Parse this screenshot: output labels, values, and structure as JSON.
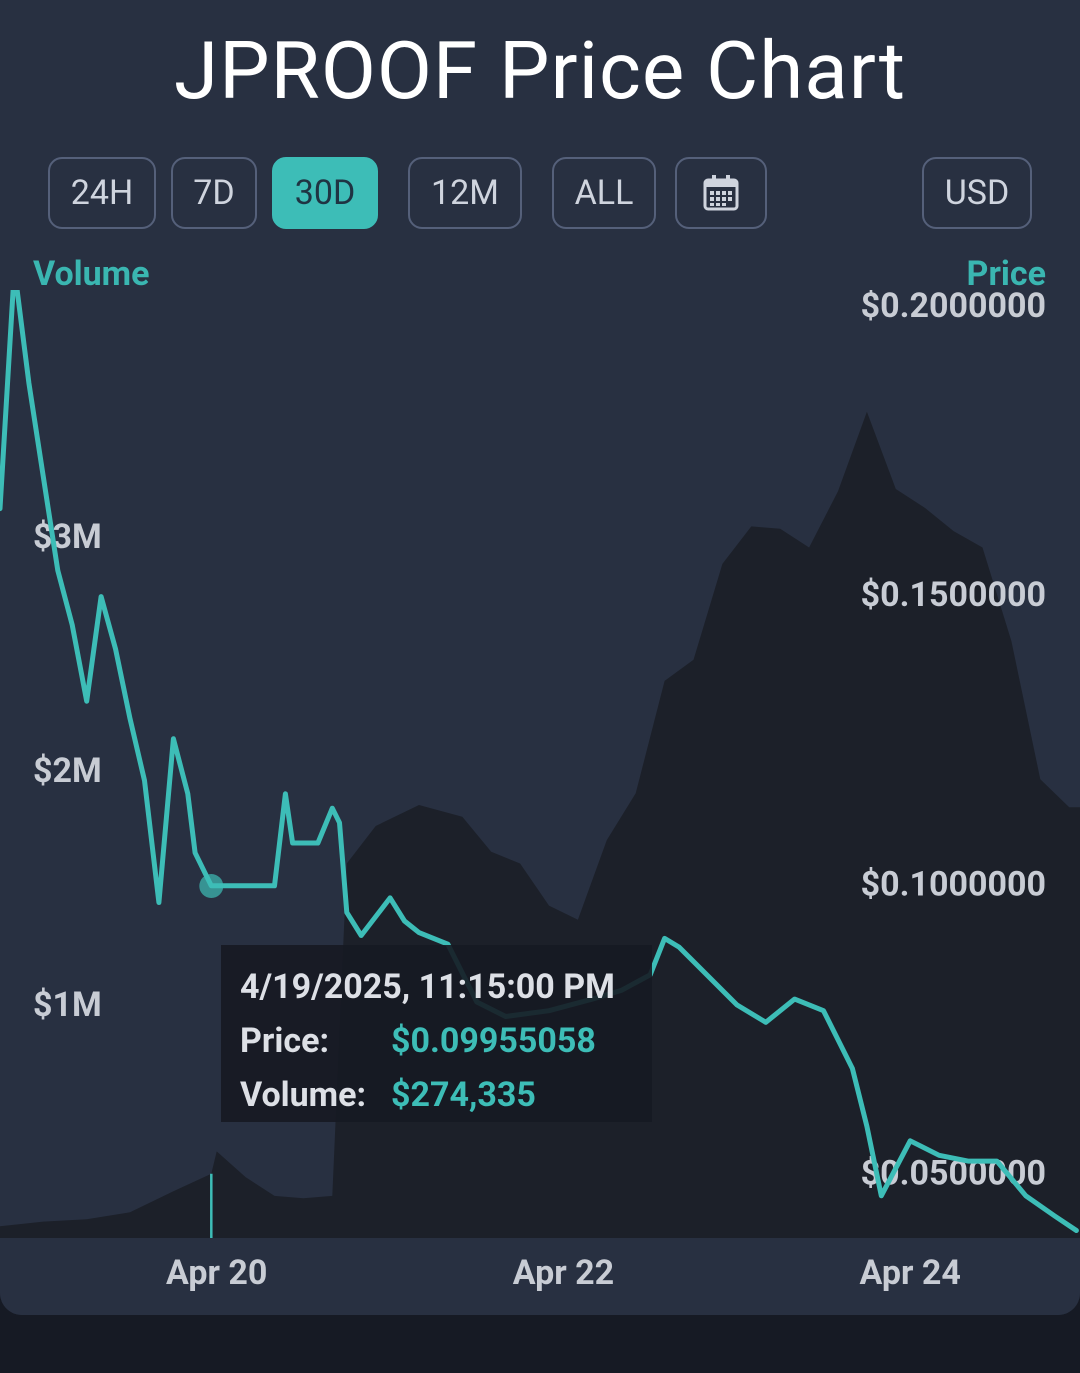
{
  "title": "JPROOF Price Chart",
  "range_buttons": [
    {
      "label": "24H",
      "active": false
    },
    {
      "label": "7D",
      "active": false
    },
    {
      "label": "30D",
      "active": true
    },
    {
      "label": "12M",
      "active": false
    },
    {
      "label": "ALL",
      "active": false
    }
  ],
  "calendar_icon": "calendar-icon",
  "currency_button": "USD",
  "colors": {
    "accent": "#3dbdb7",
    "card_bg": "#283041",
    "page_bg": "#161a24",
    "volume_fill": "#1c2029",
    "tick_text": "#c8ccd4"
  },
  "tooltip": {
    "date": "4/19/2025, 11:15:00 PM",
    "price_label": "Price:",
    "price_value": "$0.09955058",
    "volume_label": "Volume:",
    "volume_value": "$274,335"
  },
  "chart_data": {
    "type": "line",
    "title": "JPROOF Price Chart",
    "series": [
      {
        "name": "Price",
        "axis": "right",
        "style": "line",
        "points": [
          [
            "4/18/2025 18:00",
            0.1648
          ],
          [
            "4/18/2025 20:00",
            0.2063
          ],
          [
            "4/18/2025 22:00",
            0.1865
          ],
          [
            "4/19/2025 00:00",
            0.1703
          ],
          [
            "4/19/2025 02:00",
            0.1541
          ],
          [
            "4/19/2025 04:00",
            0.1447
          ],
          [
            "4/19/2025 06:00",
            0.1315
          ],
          [
            "4/19/2025 08:00",
            0.1496
          ],
          [
            "4/19/2025 10:00",
            0.1405
          ],
          [
            "4/19/2025 12:00",
            0.1285
          ],
          [
            "4/19/2025 14:00",
            0.1178
          ],
          [
            "4/19/2025 16:00",
            0.0967
          ],
          [
            "4/19/2025 18:00",
            0.125
          ],
          [
            "4/19/2025 20:00",
            0.1155
          ],
          [
            "4/19/2025 21:00",
            0.1053
          ],
          [
            "4/19/2025 23:15",
            0.0996
          ],
          [
            "4/20/2025 04:00",
            0.0996
          ],
          [
            "4/20/2025 08:00",
            0.0996
          ],
          [
            "4/20/2025 09:30",
            0.1155
          ],
          [
            "4/20/2025 10:30",
            0.107
          ],
          [
            "4/20/2025 14:00",
            0.107
          ],
          [
            "4/20/2025 16:00",
            0.113
          ],
          [
            "4/20/2025 17:00",
            0.1105
          ],
          [
            "4/20/2025 18:00",
            0.095
          ],
          [
            "4/20/2025 20:00",
            0.091
          ],
          [
            "4/21/2025 00:00",
            0.0975
          ],
          [
            "4/21/2025 02:00",
            0.0935
          ],
          [
            "4/21/2025 04:00",
            0.0915
          ],
          [
            "4/21/2025 08:00",
            0.0895
          ],
          [
            "4/21/2025 12:00",
            0.0795
          ],
          [
            "4/21/2025 16:00",
            0.077
          ],
          [
            "4/21/2025 22:00",
            0.078
          ],
          [
            "4/22/2025 04:00",
            0.08
          ],
          [
            "4/22/2025 08:00",
            0.0815
          ],
          [
            "4/22/2025 12:00",
            0.0842
          ],
          [
            "4/22/2025 14:00",
            0.0905
          ],
          [
            "4/22/2025 16:00",
            0.089
          ],
          [
            "4/22/2025 20:00",
            0.084
          ],
          [
            "4/23/2025 00:00",
            0.079
          ],
          [
            "4/23/2025 04:00",
            0.076
          ],
          [
            "4/23/2025 08:00",
            0.08
          ],
          [
            "4/23/2025 12:00",
            0.078
          ],
          [
            "4/23/2025 16:00",
            0.068
          ],
          [
            "4/23/2025 18:00",
            0.058
          ],
          [
            "4/23/2025 20:00",
            0.046
          ],
          [
            "4/24/2025 00:00",
            0.0555
          ],
          [
            "4/24/2025 04:00",
            0.053
          ],
          [
            "4/24/2025 08:00",
            0.052
          ],
          [
            "4/24/2025 12:00",
            0.052
          ],
          [
            "4/24/2025 16:00",
            0.046
          ],
          [
            "4/24/2025 20:00",
            0.0425
          ],
          [
            "4/24/2025 23:00",
            0.04
          ]
        ]
      },
      {
        "name": "Volume",
        "axis": "left",
        "style": "area",
        "points": [
          [
            "4/18/2025 18:00",
            50000
          ],
          [
            "4/19/2025 00:00",
            70000
          ],
          [
            "4/19/2025 06:00",
            80000
          ],
          [
            "4/19/2025 12:00",
            110000
          ],
          [
            "4/19/2025 18:00",
            200000
          ],
          [
            "4/19/2025 23:15",
            274335
          ],
          [
            "4/20/2025 00:00",
            370000
          ],
          [
            "4/20/2025 04:00",
            260000
          ],
          [
            "4/20/2025 08:00",
            180000
          ],
          [
            "4/20/2025 12:00",
            170000
          ],
          [
            "4/20/2025 16:00",
            180000
          ],
          [
            "4/20/2025 18:00",
            1600000
          ],
          [
            "4/20/2025 22:00",
            1760000
          ],
          [
            "4/21/2025 04:00",
            1850000
          ],
          [
            "4/21/2025 10:00",
            1800000
          ],
          [
            "4/21/2025 14:00",
            1650000
          ],
          [
            "4/21/2025 18:00",
            1600000
          ],
          [
            "4/21/2025 22:00",
            1420000
          ],
          [
            "4/22/2025 02:00",
            1360000
          ],
          [
            "4/22/2025 06:00",
            1700000
          ],
          [
            "4/22/2025 10:00",
            1900000
          ],
          [
            "4/22/2025 14:00",
            2380000
          ],
          [
            "4/22/2025 18:00",
            2470000
          ],
          [
            "4/22/2025 22:00",
            2880000
          ],
          [
            "4/23/2025 02:00",
            3040000
          ],
          [
            "4/23/2025 06:00",
            3030000
          ],
          [
            "4/23/2025 10:00",
            2950000
          ],
          [
            "4/23/2025 14:00",
            3190000
          ],
          [
            "4/23/2025 18:00",
            3530000
          ],
          [
            "4/23/2025 22:00",
            3200000
          ],
          [
            "4/24/2025 02:00",
            3120000
          ],
          [
            "4/24/2025 06:00",
            3020000
          ],
          [
            "4/24/2025 10:00",
            2950000
          ],
          [
            "4/24/2025 14:00",
            2550000
          ],
          [
            "4/24/2025 18:00",
            1960000
          ],
          [
            "4/24/2025 22:00",
            1840000
          ]
        ]
      }
    ],
    "y_left": {
      "label": "Volume",
      "ticks": [
        "$1M",
        "$2M",
        "$3M"
      ],
      "tick_values": [
        1000000,
        2000000,
        3000000
      ],
      "range": [
        0,
        4050000
      ]
    },
    "y_right": {
      "label": "Price",
      "ticks": [
        "$0.0500000",
        "$0.1000000",
        "$0.1500000",
        "$0.2000000"
      ],
      "tick_values": [
        0.05,
        0.1,
        0.15,
        0.2
      ],
      "range": [
        0.0387,
        0.2026
      ]
    },
    "x_ticks": [
      "Apr 20",
      "Apr 22",
      "Apr 24"
    ],
    "x_tick_values": [
      "4/20/2025",
      "4/22/2025",
      "4/24/2025"
    ],
    "x_range": [
      "4/18/2025 18:00",
      "4/24/2025 23:30"
    ],
    "highlight": {
      "x": "4/19/2025 23:15",
      "price": 0.09955058,
      "volume": 274335
    },
    "grid": false
  }
}
